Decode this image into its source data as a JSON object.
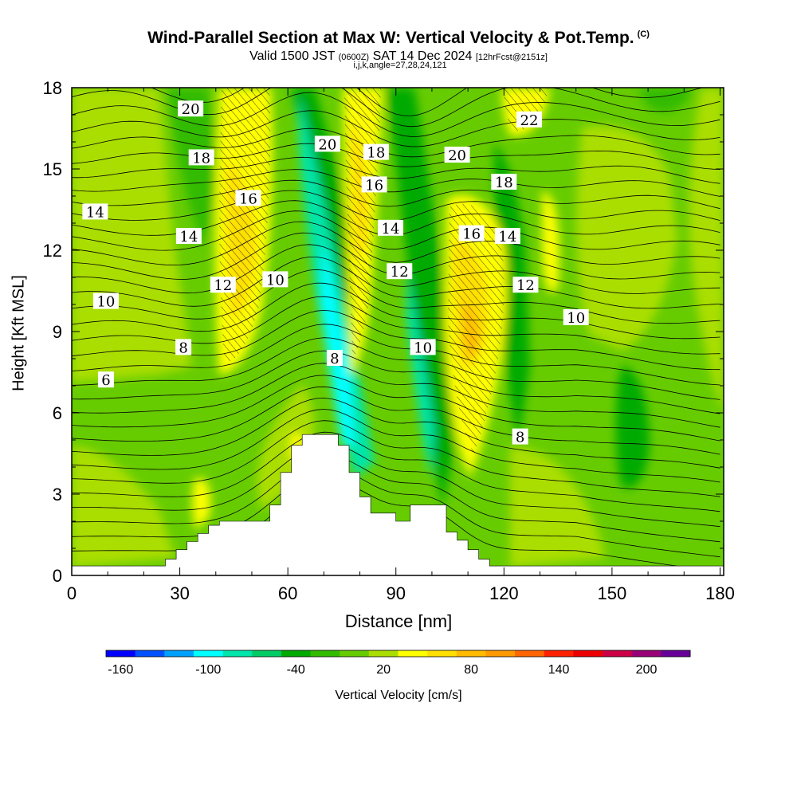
{
  "header": {
    "title": "Wind-Parallel Section at Max W: Vertical Velocity & Pot.Temp.",
    "copyright": "(C)",
    "valid_a": "Valid 1500 JST",
    "valid_z": "(0600Z)",
    "valid_b": "SAT 14 Dec 2024",
    "valid_fcst": "[12hrFcst@2151z]",
    "indices": "i,j,k,angle=27,28,24,121"
  },
  "chart_data": {
    "type": "heatmap",
    "xlabel": "Distance [nm]",
    "ylabel": "Height [Kft MSL]",
    "xlim": [
      0,
      181
    ],
    "ylim": [
      0,
      18
    ],
    "xticks": [
      0,
      30,
      60,
      90,
      120,
      150,
      180
    ],
    "yticks": [
      0,
      3,
      6,
      9,
      12,
      15,
      18
    ],
    "terrain_profile": [
      [
        0,
        0.35
      ],
      [
        26,
        0.35
      ],
      [
        26,
        0.6
      ],
      [
        29,
        0.6
      ],
      [
        29,
        0.95
      ],
      [
        32,
        0.95
      ],
      [
        32,
        1.25
      ],
      [
        35,
        1.25
      ],
      [
        35,
        1.55
      ],
      [
        38,
        1.55
      ],
      [
        38,
        1.85
      ],
      [
        41,
        1.85
      ],
      [
        41,
        2.0
      ],
      [
        55,
        2.0
      ],
      [
        55,
        2.6
      ],
      [
        58,
        2.6
      ],
      [
        58,
        3.8
      ],
      [
        61,
        3.8
      ],
      [
        61,
        4.8
      ],
      [
        64,
        4.8
      ],
      [
        64,
        5.2
      ],
      [
        74,
        5.2
      ],
      [
        74,
        4.8
      ],
      [
        77,
        4.8
      ],
      [
        77,
        3.8
      ],
      [
        80,
        3.8
      ],
      [
        80,
        2.9
      ],
      [
        83,
        2.9
      ],
      [
        83,
        2.3
      ],
      [
        90,
        2.3
      ],
      [
        90,
        2.0
      ],
      [
        94,
        2.0
      ],
      [
        94,
        2.6
      ],
      [
        104,
        2.6
      ],
      [
        104,
        1.6
      ],
      [
        107,
        1.6
      ],
      [
        107,
        1.3
      ],
      [
        110,
        1.3
      ],
      [
        110,
        0.95
      ],
      [
        113,
        0.95
      ],
      [
        113,
        0.6
      ],
      [
        116,
        0.6
      ],
      [
        116,
        0.35
      ],
      [
        181,
        0.35
      ]
    ],
    "contour_labels": [
      {
        "text": "20",
        "x": 33,
        "y": 17.2
      },
      {
        "text": "18",
        "x": 36,
        "y": 15.4
      },
      {
        "text": "14",
        "x": 6.5,
        "y": 13.4
      },
      {
        "text": "14",
        "x": 32.5,
        "y": 12.5
      },
      {
        "text": "16",
        "x": 49,
        "y": 13.9
      },
      {
        "text": "12",
        "x": 42,
        "y": 10.7
      },
      {
        "text": "10",
        "x": 56.5,
        "y": 10.9
      },
      {
        "text": "10",
        "x": 9.5,
        "y": 10.1
      },
      {
        "text": "8",
        "x": 31,
        "y": 8.4
      },
      {
        "text": "6",
        "x": 9.5,
        "y": 7.2
      },
      {
        "text": "20",
        "x": 71,
        "y": 15.9
      },
      {
        "text": "18",
        "x": 84.5,
        "y": 15.6
      },
      {
        "text": "16",
        "x": 84,
        "y": 14.4
      },
      {
        "text": "14",
        "x": 88.5,
        "y": 12.8
      },
      {
        "text": "12",
        "x": 91,
        "y": 11.2
      },
      {
        "text": "8",
        "x": 73,
        "y": 8.0
      },
      {
        "text": "10",
        "x": 97.5,
        "y": 8.4
      },
      {
        "text": "20",
        "x": 107,
        "y": 15.5
      },
      {
        "text": "18",
        "x": 120,
        "y": 14.5
      },
      {
        "text": "22",
        "x": 127,
        "y": 16.8
      },
      {
        "text": "16",
        "x": 111,
        "y": 12.6
      },
      {
        "text": "14",
        "x": 121,
        "y": 12.5
      },
      {
        "text": "12",
        "x": 126,
        "y": 10.7
      },
      {
        "text": "10",
        "x": 140,
        "y": 9.5
      },
      {
        "text": "8",
        "x": 124.5,
        "y": 5.1
      }
    ]
  },
  "colorbar": {
    "ticks": [
      "-160",
      "-100",
      "-40",
      "20",
      "80",
      "140",
      "200"
    ],
    "label": "Vertical Velocity [cm/s]",
    "colors": [
      "#0000ff",
      "#0050ff",
      "#00a0ff",
      "#00ffff",
      "#00e5aa",
      "#00cc66",
      "#00aa00",
      "#33bb00",
      "#66cc00",
      "#aade00",
      "#ffff00",
      "#ffe000",
      "#ffbb00",
      "#ff9900",
      "#ff6600",
      "#ff2200",
      "#ee0000",
      "#cc0044",
      "#990077",
      "#660099"
    ]
  },
  "colors": {
    "base_green": "#66cc00",
    "light_green": "#aade00",
    "mid_green": "#33bb00",
    "dark_green": "#00aa00",
    "yellow": "#ffff00",
    "gold": "#ffe000",
    "cyan": "#00ffff",
    "teal": "#00e5aa",
    "orange": "#ffbb00"
  }
}
